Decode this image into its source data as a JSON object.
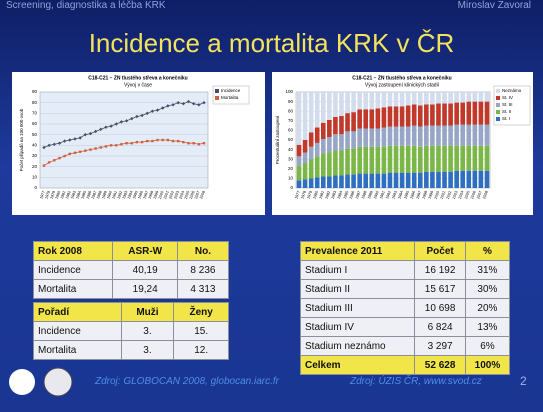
{
  "header": {
    "left": "Screening, diagnostika a léčba KRK",
    "right": "Miroslav Zavoral",
    "title": "Incidence a mortalita KRK v ČR"
  },
  "chart_data": [
    {
      "type": "line",
      "title": "C18-C21 – ZN tlustého střeva a konečníku",
      "subtitle": "Vývoj v čase",
      "ylabel": "Počet případů na 100 000 osob",
      "categories": [
        "1977",
        "1978",
        "1979",
        "1980",
        "1981",
        "1982",
        "1983",
        "1984",
        "1985",
        "1986",
        "1987",
        "1988",
        "1989",
        "1990",
        "1991",
        "1992",
        "1993",
        "1994",
        "1995",
        "1996",
        "1997",
        "1998",
        "1999",
        "2000",
        "2001",
        "2002",
        "2003",
        "2004",
        "2005",
        "2006",
        "2007",
        "2008"
      ],
      "series": [
        {
          "name": "Incidence",
          "color": "#4a5063",
          "values": [
            38,
            40,
            41,
            42,
            44,
            45,
            46,
            47,
            50,
            51,
            53,
            55,
            57,
            58,
            60,
            62,
            63,
            65,
            67,
            68,
            70,
            72,
            73,
            75,
            77,
            78,
            80,
            79,
            81,
            79,
            78,
            80
          ]
        },
        {
          "name": "Mortalita",
          "color": "#d2603e",
          "values": [
            21,
            24,
            26,
            28,
            30,
            32,
            33,
            34,
            35,
            36,
            37,
            38,
            39,
            40,
            40,
            41,
            42,
            42,
            43,
            43,
            44,
            44,
            45,
            45,
            45,
            44,
            44,
            43,
            42,
            42,
            41,
            42
          ]
        }
      ],
      "ylim": [
        0,
        90
      ],
      "yticks": [
        0,
        10,
        20,
        30,
        40,
        50,
        60,
        70,
        80,
        90
      ],
      "grid": true
    },
    {
      "type": "bar",
      "stacked": true,
      "title": "C18-C21 – ZN tlustého střeva a konečníku",
      "subtitle": "Vývoj zastoupení klinických stadií",
      "ylabel": "Procentuální zastoupení",
      "categories": [
        "1977",
        "1978",
        "1979",
        "1980",
        "1981",
        "1982",
        "1983",
        "1984",
        "1985",
        "1986",
        "1987",
        "1988",
        "1989",
        "1990",
        "1991",
        "1992",
        "1993",
        "1994",
        "1995",
        "1996",
        "1997",
        "1998",
        "1999",
        "2000",
        "2001",
        "2002",
        "2003",
        "2004",
        "2005",
        "2006",
        "2007",
        "2008"
      ],
      "series": [
        {
          "name": "St. I",
          "color": "#2f6fc0",
          "values": [
            8,
            9,
            10,
            11,
            12,
            12,
            13,
            13,
            14,
            14,
            15,
            15,
            15,
            15,
            15,
            16,
            16,
            16,
            16,
            16,
            16,
            17,
            17,
            17,
            17,
            17,
            18,
            18,
            18,
            18,
            18,
            18
          ]
        },
        {
          "name": "St. II",
          "color": "#7ab648",
          "values": [
            15,
            17,
            20,
            22,
            24,
            25,
            26,
            26,
            27,
            27,
            28,
            28,
            28,
            28,
            28,
            28,
            28,
            28,
            28,
            28,
            27,
            27,
            27,
            27,
            27,
            27,
            26,
            26,
            26,
            26,
            26,
            26
          ]
        },
        {
          "name": "St. III",
          "color": "#97a6c6",
          "values": [
            10,
            11,
            13,
            14,
            15,
            16,
            17,
            17,
            18,
            18,
            19,
            19,
            19,
            19,
            20,
            20,
            20,
            20,
            20,
            21,
            21,
            21,
            21,
            21,
            21,
            21,
            22,
            22,
            22,
            22,
            22,
            22
          ]
        },
        {
          "name": "St. IV",
          "color": "#c0392b",
          "values": [
            12,
            13,
            15,
            16,
            17,
            18,
            18,
            19,
            19,
            20,
            20,
            20,
            20,
            21,
            21,
            21,
            21,
            21,
            22,
            22,
            22,
            22,
            22,
            23,
            23,
            23,
            23,
            23,
            24,
            24,
            24,
            24
          ]
        },
        {
          "name": "Neznámo",
          "color": "#d3dcec",
          "values": [
            55,
            50,
            42,
            37,
            32,
            29,
            26,
            25,
            22,
            21,
            18,
            18,
            18,
            17,
            16,
            15,
            15,
            15,
            14,
            13,
            14,
            13,
            13,
            12,
            12,
            12,
            11,
            11,
            10,
            10,
            10,
            10
          ]
        }
      ],
      "ylim": [
        0,
        100
      ],
      "yticks": [
        0,
        10,
        20,
        30,
        40,
        50,
        60,
        70,
        80,
        90,
        100
      ],
      "grid": true
    }
  ],
  "tables": [
    {
      "header": [
        "Rok 2008",
        "ASR-W",
        "No."
      ],
      "rows": [
        [
          "Incidence",
          "40,19",
          "8 236"
        ],
        [
          "Mortalita",
          "19,24",
          "4 313"
        ]
      ]
    },
    {
      "header": [
        "Pořadí",
        "Muži",
        "Ženy"
      ],
      "rows": [
        [
          "Incidence",
          "3.",
          "15."
        ],
        [
          "Mortalita",
          "3.",
          "12."
        ]
      ]
    },
    {
      "header": [
        "Prevalence 2011",
        "Počet",
        "%"
      ],
      "rows": [
        [
          "Stadium I",
          "16 192",
          "31%"
        ],
        [
          "Stadium II",
          "15 617",
          "30%"
        ],
        [
          "Stadium III",
          "10 698",
          "20%"
        ],
        [
          "Stadium IV",
          "6 824",
          "13%"
        ],
        [
          "Stadium neznámo",
          "3 297",
          "6%"
        ]
      ],
      "total": [
        "Celkem",
        "52 628",
        "100%"
      ]
    }
  ],
  "footer": {
    "source_left": "Zdroj: GLOBOCAN 2008, globocan.iarc.fr",
    "source_right": "Zdroj: ÚZIS ČR, www.svod.cz",
    "page": "2"
  }
}
